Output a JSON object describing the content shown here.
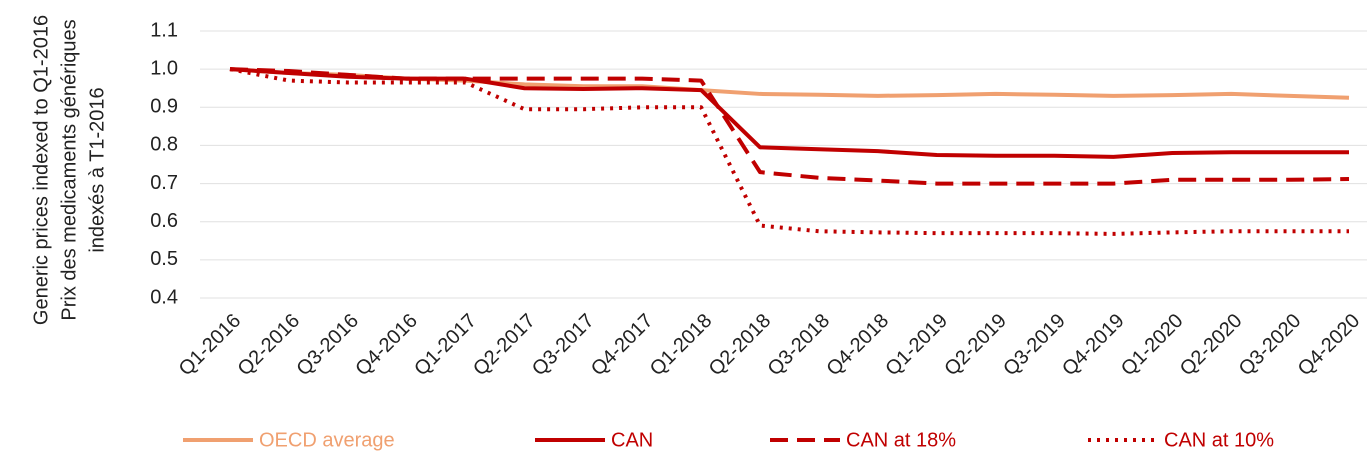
{
  "chart_data": {
    "type": "line",
    "ylabel": [
      "Generic prices indexed to Q1-2016",
      "Prix des medicaments génériques",
      "indexés à T1-2016"
    ],
    "categories": [
      "Q1-2016",
      "Q2-2016",
      "Q3-2016",
      "Q4-2016",
      "Q1-2017",
      "Q2-2017",
      "Q3-2017",
      "Q4-2017",
      "Q1-2018",
      "Q2-2018",
      "Q3-2018",
      "Q4-2018",
      "Q1-2019",
      "Q2-2019",
      "Q3-2019",
      "Q4-2019",
      "Q1-2020",
      "Q2-2020",
      "Q3-2020",
      "Q4-2020"
    ],
    "series": [
      {
        "name": "OECD average",
        "color": "#f0a070",
        "dash": "solid",
        "values": [
          1.0,
          0.99,
          0.985,
          0.975,
          0.97,
          0.96,
          0.955,
          0.955,
          0.945,
          0.935,
          0.933,
          0.93,
          0.932,
          0.935,
          0.933,
          0.93,
          0.932,
          0.935,
          0.93,
          0.925
        ]
      },
      {
        "name": "CAN",
        "color": "#c00000",
        "dash": "solid",
        "values": [
          1.0,
          0.99,
          0.98,
          0.975,
          0.975,
          0.95,
          0.948,
          0.95,
          0.945,
          0.795,
          0.79,
          0.785,
          0.775,
          0.773,
          0.773,
          0.77,
          0.78,
          0.782,
          0.782,
          0.782
        ]
      },
      {
        "name": "CAN at 18%",
        "color": "#c00000",
        "dash": "dashed",
        "values": [
          1.0,
          0.995,
          0.985,
          0.975,
          0.975,
          0.975,
          0.975,
          0.975,
          0.97,
          0.73,
          0.715,
          0.708,
          0.7,
          0.7,
          0.7,
          0.7,
          0.71,
          0.71,
          0.71,
          0.712
        ]
      },
      {
        "name": "CAN at 10%",
        "color": "#c00000",
        "dash": "dotted",
        "values": [
          1.0,
          0.97,
          0.965,
          0.965,
          0.965,
          0.895,
          0.895,
          0.9,
          0.9,
          0.59,
          0.575,
          0.572,
          0.57,
          0.57,
          0.57,
          0.568,
          0.572,
          0.575,
          0.575,
          0.575
        ]
      }
    ],
    "ylim": [
      0.4,
      1.1
    ],
    "yticks": [
      0.4,
      0.5,
      0.6,
      0.7,
      0.8,
      0.9,
      {
        "value": 1,
        "label": "1.0"
      },
      1.1
    ],
    "grid": true
  }
}
